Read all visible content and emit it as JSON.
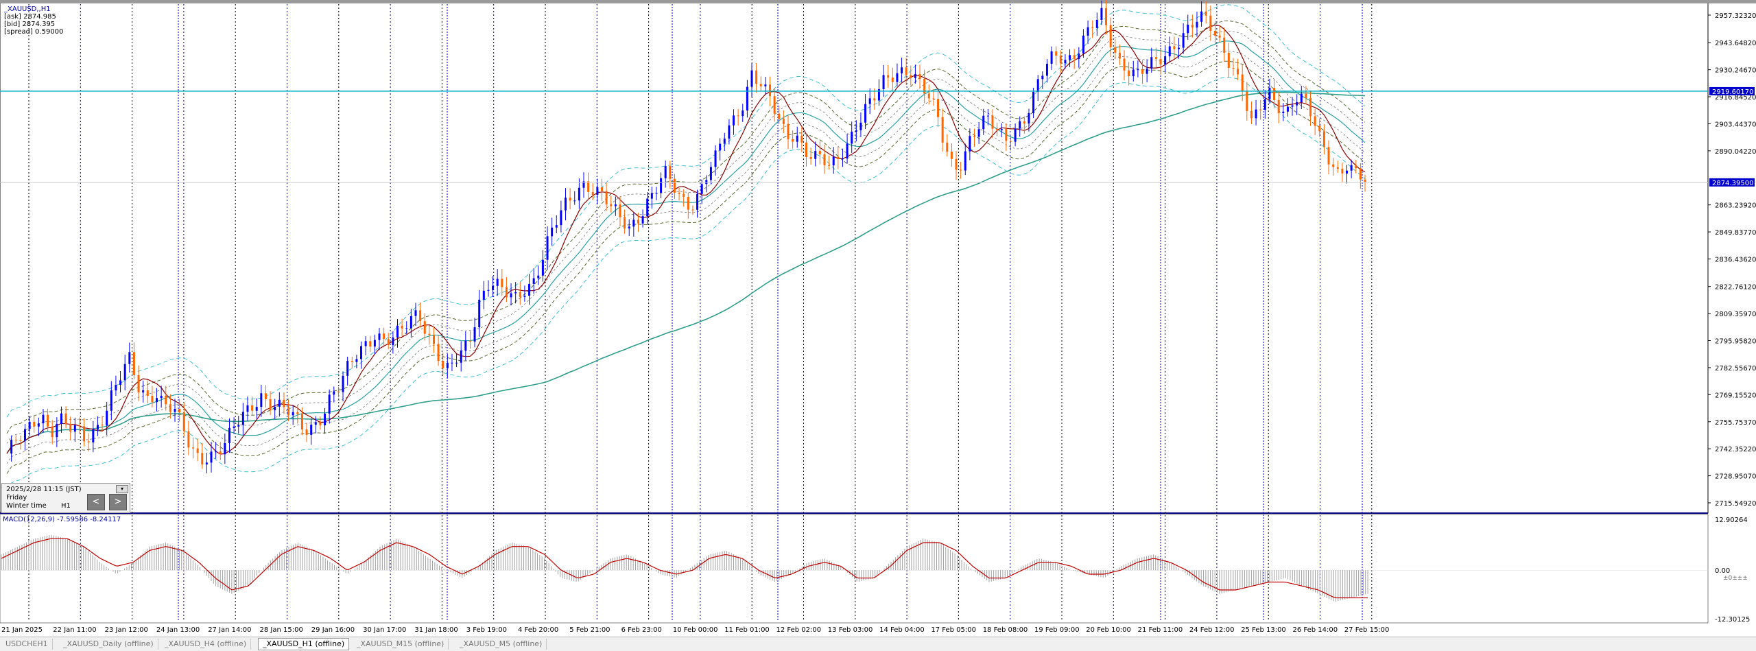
{
  "info": {
    "symbol": "_XAUUSD,,H1",
    "ask": "[ask] 2874.985",
    "bid": "[bid] 2874.395",
    "spread": "[spread] 0.59000"
  },
  "chart_data": [
    {
      "type": "candlestick",
      "title": "_XAUUSD,,H1",
      "y_axis_ticks": [
        "2957.32320",
        "2943.64820",
        "2930.24670",
        "2916.84520",
        "2903.44370",
        "2890.04220",
        "2863.23920",
        "2849.83770",
        "2836.43620",
        "2822.76120",
        "2809.35970",
        "2795.95820",
        "2782.55670",
        "2769.15520",
        "2755.75370",
        "2742.35220",
        "2728.95070",
        "2715.54920"
      ],
      "ylim": [
        2715.5492,
        2957.3232
      ],
      "x_axis_ticks": [
        "21 Jan 2025",
        "22 Jan 11:00",
        "23 Jan 12:00",
        "24 Jan 13:00",
        "27 Jan 14:00",
        "28 Jan 15:00",
        "29 Jan 16:00",
        "30 Jan 17:00",
        "31 Jan 18:00",
        "3 Feb 19:00",
        "4 Feb 20:00",
        "5 Feb 21:00",
        "6 Feb 23:00",
        "10 Feb 00:00",
        "11 Feb 01:00",
        "12 Feb 02:00",
        "13 Feb 03:00",
        "14 Feb 04:00",
        "17 Feb 05:00",
        "18 Feb 08:00",
        "19 Feb 09:00",
        "20 Feb 10:00",
        "21 Feb 11:00",
        "24 Feb 12:00",
        "25 Feb 13:00",
        "26 Feb 14:00",
        "27 Feb 15:00"
      ],
      "close_path": [
        [
          2740,
          2745
        ],
        [
          2748,
          2755
        ],
        [
          2760,
          2752
        ],
        [
          2758,
          2752
        ],
        [
          2750,
          2746
        ],
        [
          2752,
          2760
        ],
        [
          2770,
          2778
        ],
        [
          2785,
          2772
        ],
        [
          2768,
          2772
        ],
        [
          2765,
          2762
        ],
        [
          2752,
          2741
        ],
        [
          2738,
          2740
        ],
        [
          2742,
          2745
        ],
        [
          2752,
          2758
        ],
        [
          2764,
          2770
        ],
        [
          2766,
          2763
        ],
        [
          2760,
          2756
        ],
        [
          2752,
          2755
        ],
        [
          2760,
          2768
        ],
        [
          2772,
          2782
        ],
        [
          2790,
          2796
        ],
        [
          2800,
          2796
        ],
        [
          2795,
          2800
        ],
        [
          2806,
          2812
        ],
        [
          2800,
          2792
        ],
        [
          2778,
          2784
        ],
        [
          2790,
          2800
        ],
        [
          2818,
          2825
        ],
        [
          2822,
          2818
        ],
        [
          2816,
          2822
        ],
        [
          2826,
          2836
        ],
        [
          2848,
          2856
        ],
        [
          2864,
          2870
        ],
        [
          2876,
          2871
        ],
        [
          2868,
          2860
        ],
        [
          2856,
          2852
        ],
        [
          2858,
          2865
        ],
        [
          2870,
          2878
        ],
        [
          2872,
          2866
        ],
        [
          2864,
          2870
        ],
        [
          2880,
          2886
        ],
        [
          2898,
          2905
        ],
        [
          2915,
          2930
        ],
        [
          2924,
          2915
        ],
        [
          2905,
          2896
        ],
        [
          2900,
          2892
        ],
        [
          2888,
          2885
        ],
        [
          2880,
          2886
        ],
        [
          2895,
          2905
        ],
        [
          2912,
          2916
        ],
        [
          2922,
          2926
        ],
        [
          2930,
          2932
        ],
        [
          2926,
          2918
        ],
        [
          2908,
          2892
        ],
        [
          2882,
          2886
        ],
        [
          2898,
          2902
        ],
        [
          2904,
          2899
        ],
        [
          2896,
          2902
        ],
        [
          2906,
          2914
        ],
        [
          2926,
          2934
        ],
        [
          2938,
          2936
        ],
        [
          2940,
          2946
        ],
        [
          2952,
          2956
        ],
        [
          2944,
          2935
        ],
        [
          2932,
          2928
        ],
        [
          2930,
          2932
        ],
        [
          2936,
          2942
        ],
        [
          2948,
          2952
        ],
        [
          2955,
          2953
        ],
        [
          2946,
          2940
        ],
        [
          2932,
          2922
        ],
        [
          2902,
          2910
        ],
        [
          2918,
          2914
        ],
        [
          2910,
          2918
        ],
        [
          2915,
          2905
        ],
        [
          2893,
          2886
        ],
        [
          2880,
          2885
        ],
        [
          2878,
          2874
        ]
      ],
      "markers": {
        "horizontal_line": 2919.6,
        "bid_line": 2874.395
      },
      "indicators": [
        "moving-averages",
        "envelope-bands",
        "long-moving-average"
      ]
    },
    {
      "type": "histogram",
      "title": "MACD(12,26,9) -7.59586 -8.24117",
      "y_axis_ticks": [
        "12.90264",
        "0.00",
        "-12.30125"
      ],
      "ylim": [
        -12.30125,
        12.90264
      ],
      "macd": [
        4,
        6,
        8,
        9,
        8,
        6,
        2,
        -1,
        2,
        6,
        7,
        5,
        1,
        -4,
        -6,
        -4,
        1,
        5,
        7,
        5,
        2,
        -1,
        2,
        6,
        8,
        6,
        3,
        0,
        -2,
        1,
        5,
        7,
        6,
        3,
        -2,
        -3,
        0,
        3,
        4,
        2,
        -1,
        -2,
        1,
        4,
        5,
        3,
        -1,
        -3,
        -1,
        2,
        3,
        1,
        -3,
        -2,
        2,
        6,
        8,
        7,
        4,
        0,
        -3,
        -2,
        1,
        3,
        2,
        0,
        -1,
        -2,
        1,
        3,
        4,
        2,
        -1,
        -4,
        -6,
        -5,
        -4,
        -3,
        -2,
        -4,
        -6,
        -8,
        -7,
        -6
      ],
      "signal": [
        3,
        5,
        7,
        8,
        8,
        6,
        3,
        1,
        2,
        5,
        6,
        5,
        2,
        -2,
        -5,
        -4,
        0,
        4,
        6,
        5,
        3,
        0,
        2,
        5,
        7,
        6,
        4,
        1,
        -1,
        1,
        4,
        6,
        6,
        4,
        0,
        -2,
        -1,
        2,
        3,
        2,
        0,
        -1,
        0,
        3,
        4,
        3,
        0,
        -2,
        -1,
        1,
        2,
        1,
        -2,
        -2,
        1,
        5,
        7,
        7,
        5,
        1,
        -2,
        -2,
        0,
        2,
        2,
        1,
        -1,
        -1,
        0,
        2,
        3,
        2,
        0,
        -3,
        -5,
        -5,
        -4,
        -3,
        -3,
        -4,
        -5,
        -7,
        -7,
        -7
      ]
    }
  ],
  "labels": {
    "macd": "MACD(12,26,9) -7.59586 -8.24117",
    "price_marker": "2919.60170",
    "bid_marker": "2874.39500",
    "macd_marker": "±0±±±"
  },
  "datetime_box": {
    "datetime": "2025/2/28 11:15 (JST)",
    "weekday": "Friday",
    "timezone": "Winter time",
    "timeframe": "H1",
    "prev": "<",
    "next": ">",
    "dropdown": "▾"
  },
  "tabs": [
    "USDCHEH1",
    "_XAUUSD_Daily (offline)",
    "_XAUUSD_H4 (offline)",
    "_XAUUSD_H1 (offline)",
    "_XAUUSD_M15 (offline)",
    "_XAUUSD_M5 (offline)"
  ],
  "active_tab": 3,
  "colors": {
    "bull": "#0000ff",
    "bear": "#ff6600",
    "ma_fast": "#8b0000",
    "ma_slow": "#2e9e8a",
    "band_outer": "#40c0d0",
    "band_inner": "#556b2f",
    "hline": "#00b0c8",
    "vline": "#000080",
    "macd_hist": "#a0a0a0",
    "macd_signal": "#c00000"
  }
}
